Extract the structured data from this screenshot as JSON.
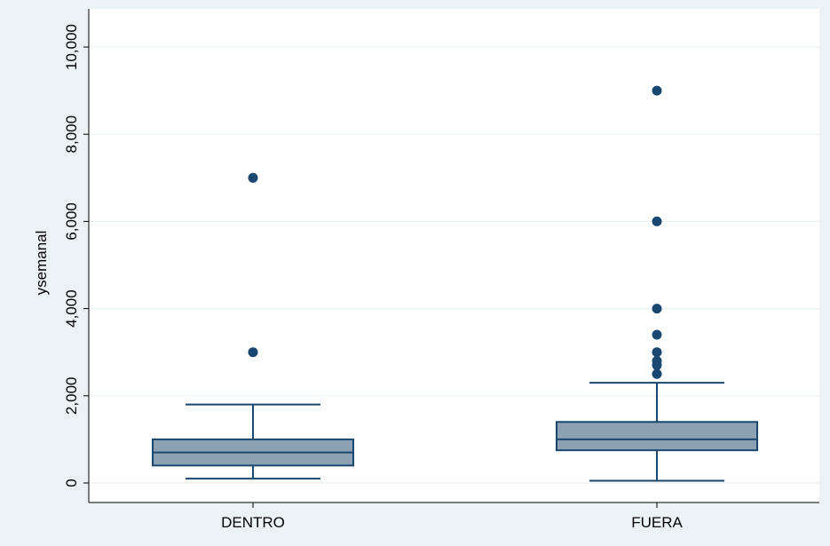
{
  "chart_data": {
    "type": "box",
    "title": "",
    "xlabel": "",
    "ylabel": "ysemanal",
    "ylim": [
      -400,
      10400
    ],
    "yticks": [
      0,
      2000,
      4000,
      6000,
      8000,
      10000
    ],
    "ytick_labels": [
      "0",
      "2,000",
      "4,000",
      "6,000",
      "8,000",
      "10,000"
    ],
    "grid": true,
    "categories": [
      "DENTRO",
      "FUERA"
    ],
    "boxes": [
      {
        "category": "DENTRO",
        "whisker_low": 100,
        "q1": 400,
        "median": 700,
        "q3": 1000,
        "whisker_high": 1800,
        "outliers": [
          3000,
          7000
        ]
      },
      {
        "category": "FUERA",
        "whisker_low": 50,
        "q1": 750,
        "median": 1000,
        "q3": 1400,
        "whisker_high": 2300,
        "outliers": [
          2500,
          2700,
          2800,
          3000,
          3400,
          4000,
          6000,
          9000
        ]
      }
    ],
    "colors": {
      "background": "#eaf2f3",
      "plot_background": "#ffffff",
      "grid": "#eaf2f3",
      "box_fill": "#8ca1b3",
      "box_line": "#1a476f",
      "outlier": "#1a476f"
    }
  }
}
